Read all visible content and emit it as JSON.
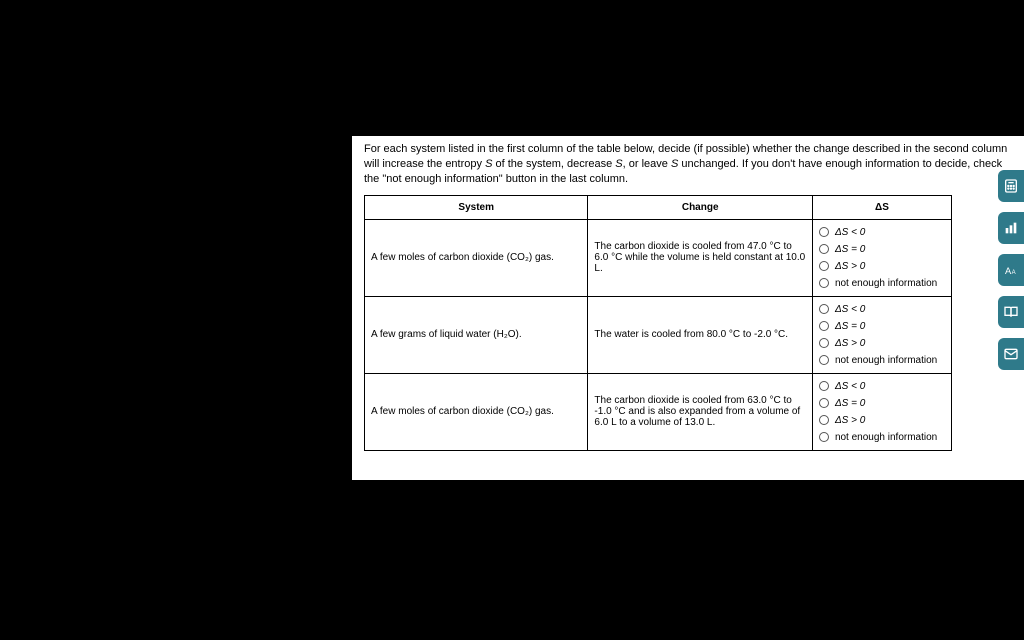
{
  "instructions": {
    "line1_pre": "For each system listed in the first column of the table below, decide (if possible) whether the change described in the second column will increase the entropy ",
    "sym_S": "S",
    "line1_mid1": " of the system, decrease ",
    "line1_mid2": ", or leave ",
    "line1_post": " unchanged. If you don't have enough information to decide, check the \"not enough information\" button in the last column."
  },
  "headers": {
    "system": "System",
    "change": "Change",
    "ds": "ΔS"
  },
  "options": {
    "lt": "ΔS < 0",
    "eq": "ΔS = 0",
    "gt": "ΔS > 0",
    "ne": "not enough information"
  },
  "rows": [
    {
      "system": "A few moles of carbon dioxide (CO₂) gas.",
      "change": "The carbon dioxide is cooled from 47.0 °C to 6.0 °C while the volume is held constant at 10.0 L."
    },
    {
      "system": "A few grams of liquid water (H₂O).",
      "change": "The water is cooled from 80.0 °C to -2.0 °C."
    },
    {
      "system": "A few moles of carbon dioxide (CO₂) gas.",
      "change": "The carbon dioxide is cooled from 63.0 °C to -1.0 °C and is also expanded from a volume of 6.0 L to a volume of 13.0 L."
    }
  ],
  "sidetabs": [
    {
      "name": "calculator-icon"
    },
    {
      "name": "bar-chart-icon"
    },
    {
      "name": "font-size-icon"
    },
    {
      "name": "book-icon"
    },
    {
      "name": "mail-icon"
    }
  ]
}
